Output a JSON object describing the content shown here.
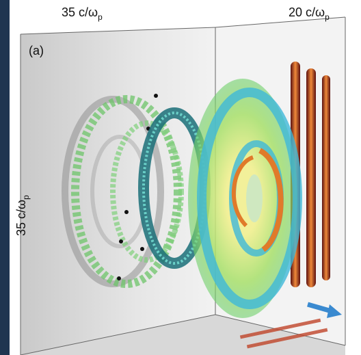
{
  "figure": {
    "top_left_label": {
      "main": "35 c/ω",
      "sub": "p"
    },
    "top_right_label": {
      "main": "20 c/ω",
      "sub": "p"
    },
    "side_label": {
      "main": "35 c/ω",
      "sub": "p"
    },
    "panel_label": "(a)"
  }
}
